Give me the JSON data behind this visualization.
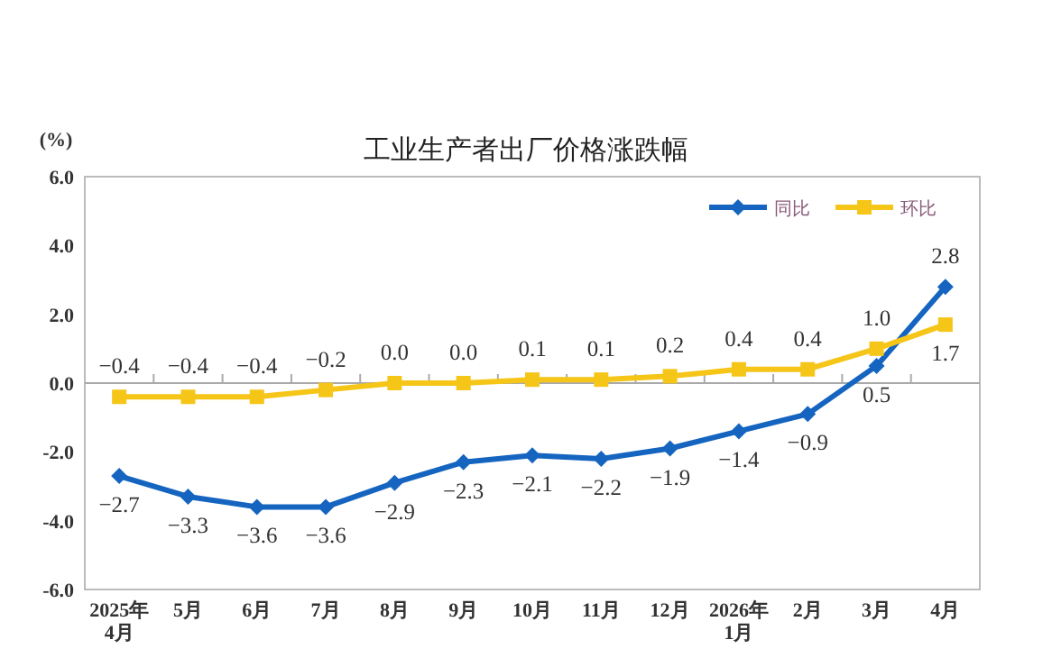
{
  "chart_data": {
    "type": "line",
    "title": "工业生产者出厂价格涨跌幅",
    "ylabel": "(%)",
    "categories": [
      "2025年\n4月",
      "5月",
      "6月",
      "7月",
      "8月",
      "9月",
      "10月",
      "11月",
      "12月",
      "2026年\n1月",
      "2月",
      "3月",
      "4月"
    ],
    "series": [
      {
        "name": "同比",
        "color": "#1565c0",
        "marker": "diamond",
        "values": [
          -2.7,
          -3.3,
          -3.6,
          -3.6,
          -2.9,
          -2.3,
          -2.1,
          -2.2,
          -1.9,
          -1.4,
          -0.9,
          0.5,
          2.8
        ],
        "value_labels": [
          "−2.7",
          "−3.3",
          "−3.6",
          "−3.6",
          "−2.9",
          "−2.3",
          "−2.1",
          "−2.2",
          "−1.9",
          "−1.4",
          "−0.9",
          "0.5",
          "2.8"
        ]
      },
      {
        "name": "环比",
        "color": "#f5c518",
        "marker": "square",
        "values": [
          -0.4,
          -0.4,
          -0.4,
          -0.2,
          0.0,
          0.0,
          0.1,
          0.1,
          0.2,
          0.4,
          0.4,
          1.0,
          1.7
        ],
        "value_labels": [
          "−0.4",
          "−0.4",
          "−0.4",
          "−0.2",
          "0.0",
          "0.0",
          "0.1",
          "0.1",
          "0.2",
          "0.4",
          "0.4",
          "1.0",
          "1.7"
        ]
      }
    ],
    "ylim": [
      -6,
      6
    ],
    "yticks": [
      {
        "value": -6,
        "label": "-6.0"
      },
      {
        "value": -4,
        "label": "-4.0"
      },
      {
        "value": -2,
        "label": "-2.0"
      },
      {
        "value": 0,
        "label": "0.0"
      },
      {
        "value": 2,
        "label": "2.0"
      },
      {
        "value": 4,
        "label": "4.0"
      },
      {
        "value": 6,
        "label": "6.0"
      }
    ],
    "legend": "top right"
  }
}
